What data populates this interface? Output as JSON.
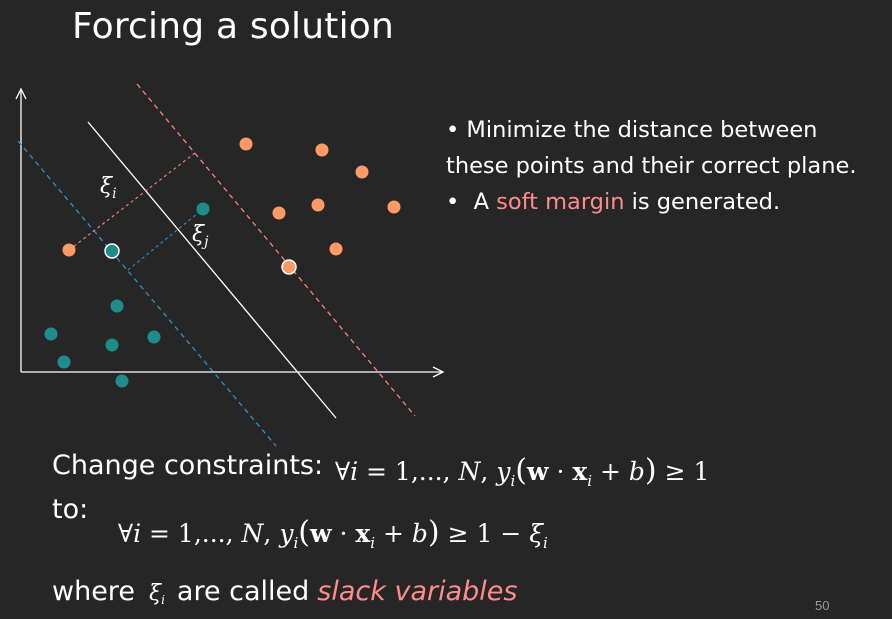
{
  "slide": {
    "title": "Forcing a solution",
    "page_number": "50"
  },
  "bullets": {
    "item1_line1": "• Minimize the distance between",
    "item1_line2": "these points and their correct plane.",
    "item2_prefix": "•  A ",
    "item2_highlight": "soft margin",
    "item2_suffix": " is generated."
  },
  "constraints": {
    "change_label": "Change constraints:",
    "to_label": "to:",
    "forall": "∀",
    "i": "i",
    "eq_range": " = 1,..., ",
    "N": "N",
    "comma": ", ",
    "y": "y",
    "sub_i": "i",
    "lparen": "(",
    "w": "w",
    "dot": " · ",
    "x": "x",
    "plus_b": " + ",
    "b": "b",
    "rparen": ")",
    "ge1": " ≥ 1",
    "minus": " − ",
    "xi": "ξ"
  },
  "footer": {
    "where_label": "where",
    "xi_symbol": "ξ",
    "xi_sub": "i",
    "called_label": "are called",
    "slack_variables": "slack variables"
  },
  "diagram": {
    "xi_i_label": "ξ",
    "xi_i_sub": "i",
    "xi_j_label": "ξ",
    "xi_j_sub": "j",
    "colors": {
      "positive_class": "#ff9966",
      "negative_class": "#1f8c8c",
      "positive_margin": "#ff7f7f",
      "negative_margin": "#2f8fd0",
      "hyperplane": "#ffffff",
      "slack_i": "#ff7f7f",
      "slack_j": "#2f8fd0"
    }
  }
}
